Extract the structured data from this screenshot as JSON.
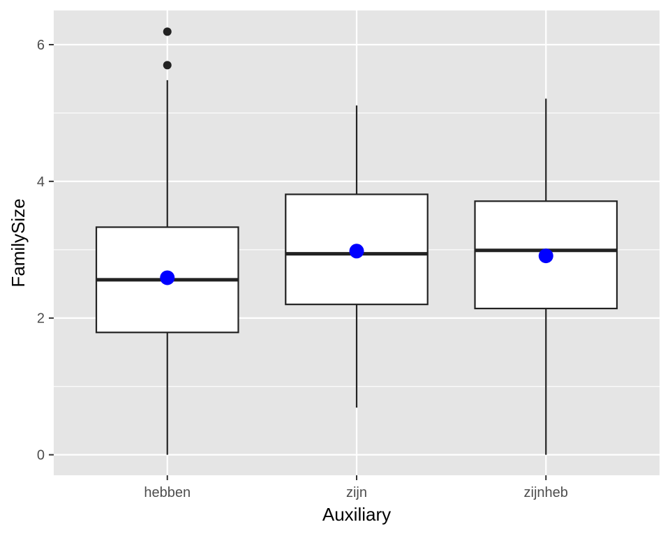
{
  "chart_data": {
    "type": "boxplot",
    "title": "",
    "xlabel": "Auxiliary",
    "ylabel": "FamilySize",
    "ylim": [
      -0.3,
      6.5
    ],
    "yticks": [
      0,
      2,
      4,
      6
    ],
    "grid": true,
    "legend": "none",
    "categories": [
      "hebben",
      "zijn",
      "zijnheb"
    ],
    "boxes": [
      {
        "category": "hebben",
        "whisker_low": 0.0,
        "q1": 1.79,
        "median": 2.56,
        "q3": 3.33,
        "whisker_high": 5.48,
        "mean": 2.59,
        "outliers": [
          5.7,
          6.19
        ]
      },
      {
        "category": "zijn",
        "whisker_low": 0.69,
        "q1": 2.2,
        "median": 2.94,
        "q3": 3.81,
        "whisker_high": 5.11,
        "mean": 2.98,
        "outliers": []
      },
      {
        "category": "zijnheb",
        "whisker_low": 0.0,
        "q1": 2.14,
        "median": 2.99,
        "q3": 3.71,
        "whisker_high": 5.21,
        "mean": 2.91,
        "outliers": []
      }
    ],
    "colors": {
      "panel": "#e5e5e5",
      "grid": "#ffffff",
      "box_fill": "#ffffff",
      "box_stroke": "#222222",
      "mean_point": "#0000ff",
      "outlier": "#222222"
    }
  }
}
